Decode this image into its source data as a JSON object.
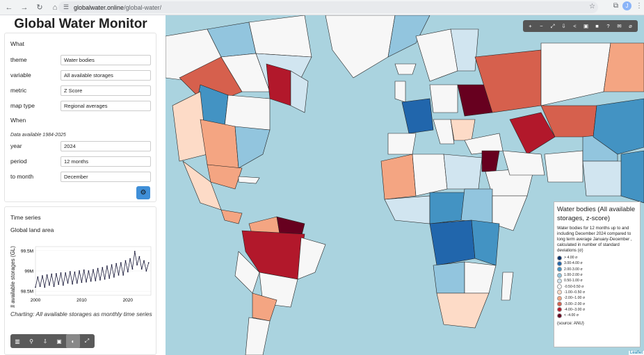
{
  "browser": {
    "url_host": "globalwater.online",
    "url_path": "/global-water/",
    "profile_initial": "J"
  },
  "app": {
    "title": "Global Water Monitor"
  },
  "what": {
    "heading": "What",
    "fields": [
      {
        "label": "theme",
        "value": "Water bodies"
      },
      {
        "label": "variable",
        "value": "All available storages"
      },
      {
        "label": "metric",
        "value": "Z Score"
      },
      {
        "label": "map type",
        "value": "Regional averages"
      }
    ]
  },
  "when": {
    "heading": "When",
    "note": "Data available 1984-2025",
    "fields": [
      {
        "label": "year",
        "value": "2024"
      },
      {
        "label": "period",
        "value": "12 months"
      },
      {
        "label": "to month",
        "value": "December"
      }
    ]
  },
  "timeseries": {
    "heading": "Time series",
    "region": "Global land area",
    "caption": "Charting: All available storages as monthly time series"
  },
  "chart_data": {
    "type": "line",
    "ylabel": "All available storages (GL)",
    "yticks": [
      "99.5M",
      "99M",
      "98.5M"
    ],
    "xticks": [
      "2000",
      "2010",
      "2020"
    ],
    "ylim": [
      98400000,
      99600000
    ],
    "xlim": [
      2000,
      2025
    ],
    "x": [
      2000.0,
      2000.5,
      2001.0,
      2001.5,
      2002.0,
      2002.5,
      2003.0,
      2003.5,
      2004.0,
      2004.5,
      2005.0,
      2005.5,
      2006.0,
      2006.5,
      2007.0,
      2007.5,
      2008.0,
      2008.5,
      2009.0,
      2009.5,
      2010.0,
      2010.5,
      2011.0,
      2011.5,
      2012.0,
      2012.5,
      2013.0,
      2013.5,
      2014.0,
      2014.5,
      2015.0,
      2015.5,
      2016.0,
      2016.5,
      2017.0,
      2017.5,
      2018.0,
      2018.5,
      2019.0,
      2019.5,
      2020.0,
      2020.5,
      2021.0,
      2021.5,
      2022.0,
      2022.5,
      2023.0,
      2023.5,
      2024.0,
      2024.5
    ],
    "values": [
      98600000,
      98850000,
      98620000,
      98880000,
      98600000,
      98900000,
      98650000,
      98920000,
      98620000,
      98930000,
      98670000,
      98950000,
      98650000,
      98950000,
      98700000,
      98980000,
      98680000,
      98970000,
      98700000,
      99000000,
      98720000,
      99020000,
      98730000,
      99000000,
      98750000,
      99030000,
      98760000,
      99060000,
      98780000,
      99080000,
      98800000,
      99120000,
      98820000,
      99150000,
      98850000,
      99180000,
      98900000,
      99200000,
      98900000,
      99250000,
      98980000,
      99300000,
      99050000,
      99480000,
      99150000,
      99350000,
      99050000,
      99250000,
      99000000,
      99200000
    ]
  },
  "toolbar": [
    "chart-icon",
    "pin-icon",
    "download-icon",
    "image-icon",
    "globe-icon",
    "expand-icon"
  ],
  "map_tools": [
    "+",
    "−",
    "⤢",
    "⇩",
    "<",
    "▣",
    "■",
    "?",
    "✉",
    "⌀"
  ],
  "legend": {
    "title": "Water bodies (All available storages, z-score)",
    "description": "Water bodies for 12 months up to and including December 2024 compared to long term average January-December , calculated in number of standard deviations (σ)",
    "items": [
      {
        "label": "> 4.00 σ",
        "color": "#08306b"
      },
      {
        "label": "3.00-4.00 σ",
        "color": "#2166ac"
      },
      {
        "label": "2.00-3.00 σ",
        "color": "#4393c3"
      },
      {
        "label": "1.00-2.00 σ",
        "color": "#92c5de"
      },
      {
        "label": "0.50-1.00 σ",
        "color": "#d1e5f0"
      },
      {
        "label": "-0.50-0.50 σ",
        "color": "#f7f7f7"
      },
      {
        "label": "-1.00--0.50 σ",
        "color": "#fddbc7"
      },
      {
        "label": "-2.00--1.00 σ",
        "color": "#f4a582"
      },
      {
        "label": "-3.00--2.00 σ",
        "color": "#d6604d"
      },
      {
        "label": "-4.00--3.00 σ",
        "color": "#b2182b"
      },
      {
        "label": "< -4.00 σ",
        "color": "#67001f"
      }
    ],
    "source": "(source: ANU)"
  },
  "attribution": "Leaflet"
}
